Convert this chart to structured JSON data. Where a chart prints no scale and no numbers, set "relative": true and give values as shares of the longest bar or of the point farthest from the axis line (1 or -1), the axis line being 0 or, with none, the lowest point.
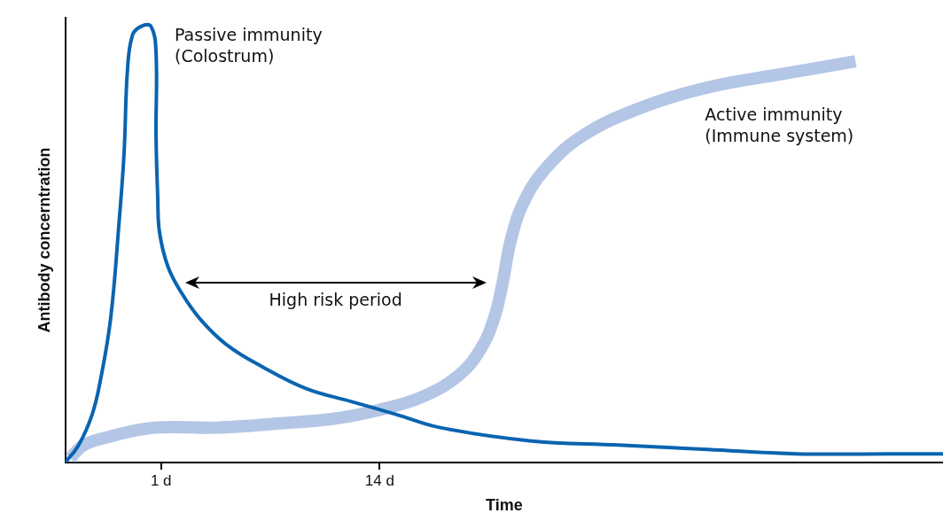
{
  "chart_data": {
    "type": "line",
    "relative": true,
    "xlabel": "Time",
    "ylabel": "Antibody concerntration",
    "xlim": [
      -4.7,
      47.5
    ],
    "xticks": [
      {
        "value": 1,
        "label": "1 d"
      },
      {
        "value": 14,
        "label": "14 d"
      }
    ],
    "marker": "none",
    "legend": false,
    "annotations": [
      "High risk period"
    ],
    "series": [
      {
        "name": "Passive immunity\n(Colostrum)",
        "color": "#0a64b0",
        "x": [
          -4.7,
          -3.9,
          -3.1,
          -2.6,
          -2.0,
          -1.5,
          -1.2,
          -1.0,
          -0.7,
          -0.2,
          0.4,
          0.7,
          0.7,
          0.8,
          0.9,
          1.4,
          2.2,
          3.3,
          4.9,
          7.0,
          9.6,
          12.3,
          15.0,
          17.6,
          22.9,
          28.2,
          33.5,
          38.8,
          44.1,
          47.5
        ],
        "values": [
          0,
          0.04,
          0.11,
          0.19,
          0.33,
          0.55,
          0.71,
          0.9,
          0.98,
          1.0,
          1.0,
          0.94,
          0.75,
          0.61,
          0.53,
          0.45,
          0.39,
          0.33,
          0.27,
          0.22,
          0.17,
          0.14,
          0.11,
          0.08,
          0.05,
          0.04,
          0.03,
          0.02,
          0.02,
          0.02
        ]
      },
      {
        "name": "Active immunity\n(Immune system)",
        "color": "#b4c6e6",
        "x": [
          -4.4,
          -3.6,
          -2.0,
          0.6,
          4.3,
          8.1,
          11.2,
          13.9,
          16.5,
          18.7,
          20.0,
          20.8,
          21.3,
          21.8,
          22.6,
          24.0,
          26.1,
          29.3,
          33.5,
          37.8,
          42.3
        ],
        "values": [
          0.01,
          0.04,
          0.06,
          0.08,
          0.08,
          0.09,
          0.1,
          0.12,
          0.15,
          0.2,
          0.26,
          0.33,
          0.41,
          0.51,
          0.6,
          0.68,
          0.75,
          0.81,
          0.86,
          0.89,
          0.92
        ]
      }
    ]
  }
}
